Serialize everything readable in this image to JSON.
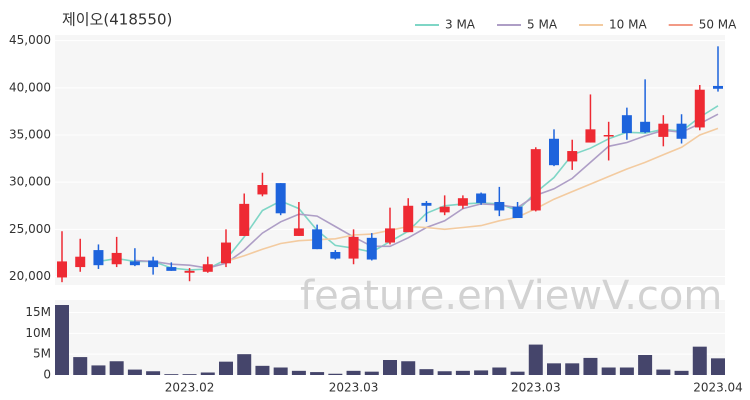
{
  "chart_data": {
    "type": "candlestick",
    "title": "제이오(418550)",
    "watermark": "feature.enViewV.com",
    "categories": [
      null,
      null,
      null,
      null,
      null,
      null,
      null,
      "2023.02",
      null,
      null,
      null,
      null,
      null,
      null,
      null,
      null,
      "2023.03",
      null,
      null,
      null,
      null,
      null,
      null,
      null,
      null,
      null,
      "2023.03",
      null,
      null,
      null,
      null,
      null,
      null,
      null,
      null,
      null,
      "2023.04"
    ],
    "open": [
      19900,
      21000,
      22800,
      21300,
      21600,
      21700,
      21000,
      20400,
      20500,
      21400,
      24300,
      28700,
      29900,
      24300,
      25000,
      22600,
      21900,
      24100,
      23600,
      24700,
      27800,
      26800,
      27500,
      28800,
      27900,
      27400,
      27000,
      34600,
      32200,
      34200,
      34900,
      37100,
      36400,
      34800,
      36200,
      35800,
      40200
    ],
    "high": [
      24800,
      24000,
      23400,
      24200,
      23000,
      22100,
      21500,
      20900,
      22100,
      25000,
      28800,
      31000,
      29900,
      27900,
      25500,
      22800,
      25000,
      24600,
      27300,
      28300,
      28000,
      28600,
      28600,
      28900,
      29500,
      27900,
      33700,
      35600,
      34500,
      39300,
      36400,
      37900,
      40900,
      37100,
      37200,
      40300,
      44400
    ],
    "low": [
      19400,
      20500,
      20800,
      21000,
      21100,
      20200,
      20600,
      19500,
      20400,
      21000,
      24300,
      28500,
      26500,
      24300,
      22900,
      21800,
      21300,
      21700,
      23400,
      24700,
      25800,
      26500,
      27200,
      27600,
      26400,
      26200,
      26900,
      31700,
      31300,
      34200,
      32300,
      34500,
      35200,
      33800,
      34100,
      35500,
      39600
    ],
    "close": [
      21600,
      22100,
      21200,
      22500,
      21200,
      21000,
      20600,
      20600,
      21300,
      23600,
      27700,
      29700,
      26700,
      25100,
      22900,
      21900,
      24200,
      21800,
      25100,
      27500,
      27500,
      27400,
      28300,
      27800,
      27000,
      26200,
      33500,
      31800,
      33300,
      35600,
      35000,
      35200,
      35300,
      36200,
      34600,
      39800,
      39900
    ],
    "up_color": "#ee2a33",
    "down_color": "#1d63dc",
    "ylim": [
      19100,
      45600
    ],
    "yticks": [
      {
        "value": 20000,
        "label": "20,000"
      },
      {
        "value": 25000,
        "label": "25,000"
      },
      {
        "value": 30000,
        "label": "30,000"
      },
      {
        "value": 35000,
        "label": "35,000"
      },
      {
        "value": 40000,
        "label": "40,000"
      },
      {
        "value": 45000,
        "label": "45,000"
      }
    ],
    "series": [
      {
        "name": "3 MA",
        "color": "#7fd6c6",
        "values": [
          null,
          null,
          21600,
          21900,
          21600,
          21600,
          20900,
          20700,
          20800,
          21800,
          24200,
          27000,
          28000,
          27200,
          24900,
          23300,
          23000,
          22600,
          23700,
          24800,
          26700,
          27500,
          27700,
          27800,
          27700,
          27000,
          28900,
          30500,
          32900,
          33600,
          34600,
          35300,
          35200,
          35600,
          35400,
          36900,
          38100
        ]
      },
      {
        "name": "5 MA",
        "color": "#ae9ec6",
        "values": [
          null,
          null,
          null,
          null,
          21700,
          21600,
          21300,
          21200,
          20900,
          21400,
          22800,
          24600,
          25800,
          26600,
          26400,
          25300,
          24200,
          23200,
          23200,
          24100,
          25200,
          25900,
          27200,
          27700,
          27600,
          27300,
          28600,
          29300,
          30400,
          32100,
          33800,
          34200,
          34900,
          35500,
          35300,
          36200,
          37200
        ]
      },
      {
        "name": "10 MA",
        "color": "#f3cba0",
        "values": [
          null,
          null,
          null,
          null,
          null,
          null,
          null,
          null,
          null,
          21600,
          22200,
          22900,
          23500,
          23800,
          23900,
          24000,
          24400,
          24500,
          24900,
          25300,
          25200,
          25000,
          25200,
          25400,
          25900,
          26300,
          27200,
          28200,
          29000,
          29800,
          30600,
          31400,
          32100,
          32900,
          33700,
          35000,
          35700
        ]
      },
      {
        "name": "50 MA",
        "color": "#f29a86",
        "values": [
          null,
          null,
          null,
          null,
          null,
          null,
          null,
          null,
          null,
          null,
          null,
          null,
          null,
          null,
          null,
          null,
          null,
          null,
          null,
          null,
          null,
          null,
          null,
          null,
          null,
          null,
          null,
          null,
          null,
          null,
          null,
          null,
          null,
          null,
          null,
          null,
          null
        ]
      }
    ],
    "volume": {
      "color": "#45456b",
      "values": [
        16800000,
        4300000,
        2300000,
        3300000,
        1300000,
        900000,
        200000,
        200000,
        600000,
        3200000,
        5000000,
        2200000,
        1800000,
        1000000,
        700000,
        300000,
        1000000,
        800000,
        3600000,
        3300000,
        1400000,
        900000,
        1000000,
        1100000,
        1800000,
        800000,
        7300000,
        2800000,
        2800000,
        4100000,
        1800000,
        1800000,
        4800000,
        1300000,
        1000000,
        6800000,
        4000000
      ],
      "ylim": [
        0,
        18000000
      ],
      "yticks": [
        0,
        {
          "value": 5000000,
          "label": "5M"
        },
        {
          "value": 10000000,
          "label": "10M"
        },
        {
          "value": 15000000,
          "label": "15M"
        }
      ]
    }
  }
}
